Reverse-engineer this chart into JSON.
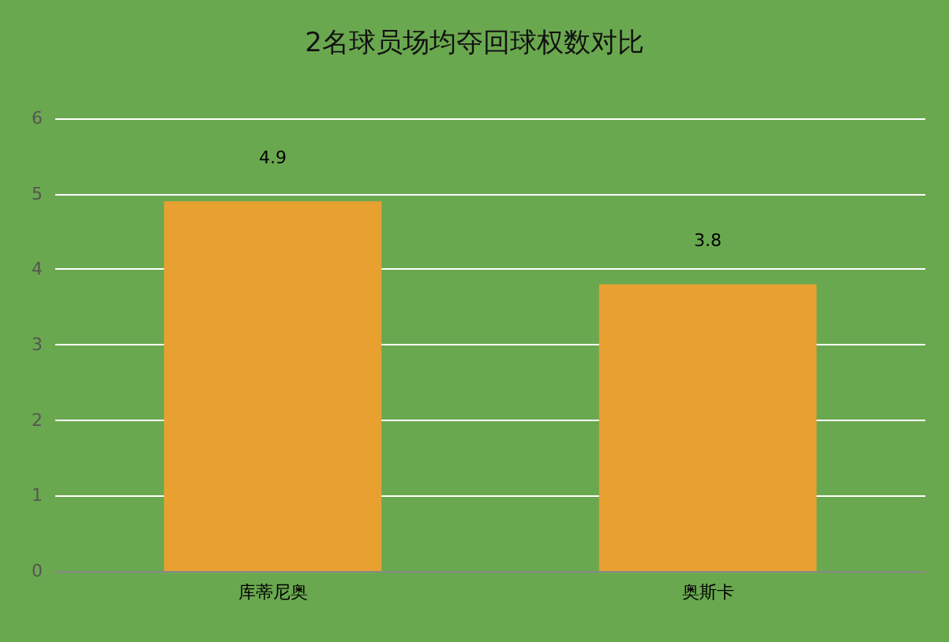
{
  "chart_data": {
    "type": "bar",
    "title": "2名球员场均夺回球权数对比",
    "categories": [
      "库蒂尼奥",
      "奥斯卡"
    ],
    "values": [
      4.9,
      3.8
    ],
    "color": "#e8a030",
    "ylim": [
      0,
      6
    ],
    "yticks": [
      0,
      1,
      2,
      3,
      4,
      5,
      6
    ],
    "grid": "y",
    "data_labels": true
  }
}
